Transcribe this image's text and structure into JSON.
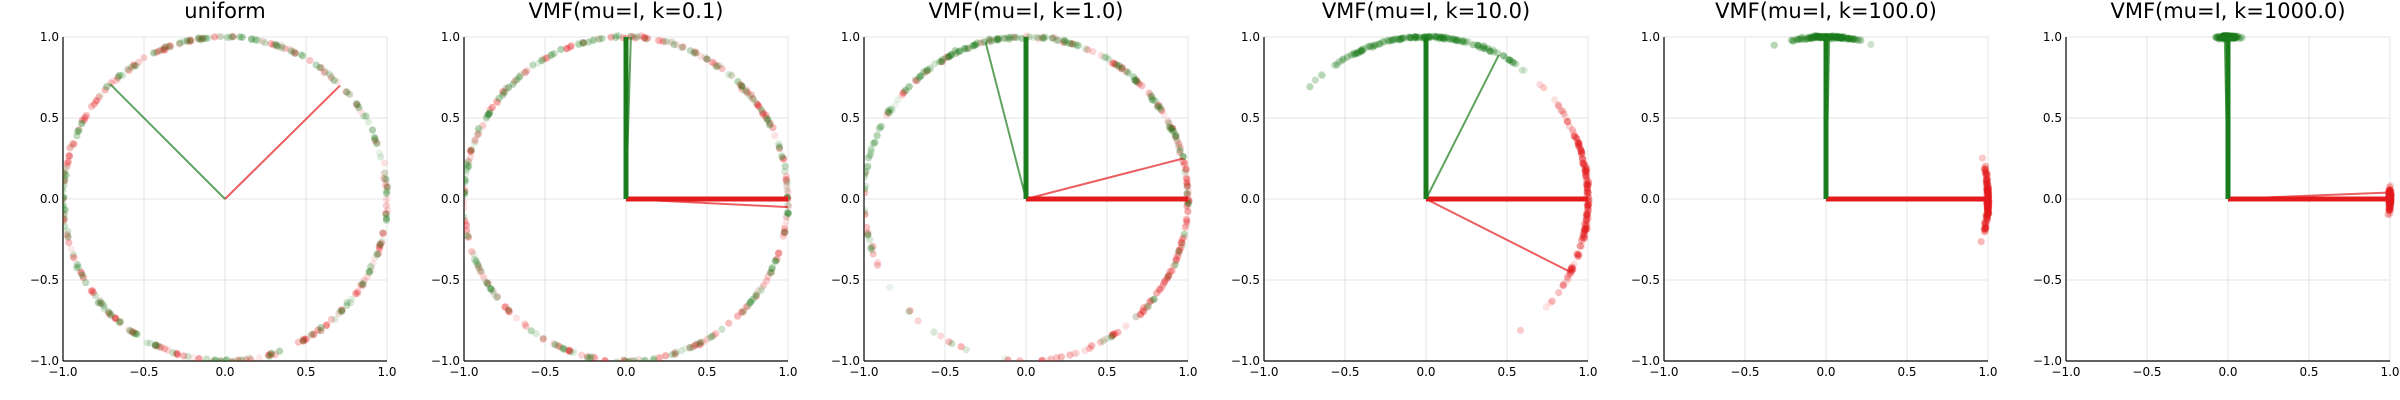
{
  "colors": {
    "red": "#e41a1c",
    "green": "#1b7c1b",
    "grid": "#e5e5e5",
    "axis": "#000000"
  },
  "chart_data": [
    {
      "type": "scatter",
      "title": "uniform",
      "xlim": [
        -1.0,
        1.0
      ],
      "ylim": [
        -1.0,
        1.0
      ],
      "xticks": [
        "−1.0",
        "−0.5",
        "0.0",
        "0.5",
        "1.0"
      ],
      "yticks": [
        "−1.0",
        "−0.5",
        "0.0",
        "0.5",
        "1.0"
      ],
      "grid": true,
      "kappa": 0,
      "mean_vectors": {
        "red": [
          0.71,
          0.7
        ],
        "green": [
          -0.71,
          0.71
        ]
      }
    },
    {
      "type": "scatter",
      "title": "VMF(mu=I, k=0.1)",
      "xlim": [
        -1.0,
        1.0
      ],
      "ylim": [
        -1.0,
        1.0
      ],
      "xticks": [
        "−1.0",
        "−0.5",
        "0.0",
        "0.5",
        "1.0"
      ],
      "yticks": [
        "−1.0",
        "−0.5",
        "0.0",
        "0.5",
        "1.0"
      ],
      "grid": true,
      "kappa": 0.1,
      "mean_vectors": {
        "red": [
          1.0,
          -0.05
        ],
        "green": [
          0.03,
          1.0
        ]
      }
    },
    {
      "type": "scatter",
      "title": "VMF(mu=I, k=1.0)",
      "xlim": [
        -1.0,
        1.0
      ],
      "ylim": [
        -1.0,
        1.0
      ],
      "xticks": [
        "−1.0",
        "−0.5",
        "0.0",
        "0.5",
        "1.0"
      ],
      "yticks": [
        "−1.0",
        "−0.5",
        "0.0",
        "0.5",
        "1.0"
      ],
      "grid": true,
      "kappa": 1.0,
      "mean_vectors": {
        "red": [
          0.97,
          0.25
        ],
        "green": [
          -0.25,
          0.97
        ]
      }
    },
    {
      "type": "scatter",
      "title": "VMF(mu=I, k=10.0)",
      "xlim": [
        -1.0,
        1.0
      ],
      "ylim": [
        -1.0,
        1.0
      ],
      "xticks": [
        "−1.0",
        "−0.5",
        "0.0",
        "0.5",
        "1.0"
      ],
      "yticks": [
        "−1.0",
        "−0.5",
        "0.0",
        "0.5",
        "1.0"
      ],
      "grid": true,
      "kappa": 10.0,
      "mean_vectors": {
        "red": [
          0.89,
          -0.45
        ],
        "green": [
          0.45,
          0.89
        ]
      }
    },
    {
      "type": "scatter",
      "title": "VMF(mu=I, k=100.0)",
      "xlim": [
        -1.0,
        1.0
      ],
      "ylim": [
        -1.0,
        1.0
      ],
      "xticks": [
        "−1.0",
        "−0.5",
        "0.0",
        "0.5",
        "1.0"
      ],
      "yticks": [
        "−1.0",
        "−0.5",
        "0.0",
        "0.5",
        "1.0"
      ],
      "grid": true,
      "kappa": 100.0,
      "mean_vectors": {
        "red": [
          1.0,
          -0.01
        ],
        "green": [
          0.02,
          1.0
        ]
      }
    },
    {
      "type": "scatter",
      "title": "VMF(mu=I, k=1000.0)",
      "xlim": [
        -1.0,
        1.0
      ],
      "ylim": [
        -1.0,
        1.0
      ],
      "xticks": [
        "−1.0",
        "−0.5",
        "0.0",
        "0.5",
        "1.0"
      ],
      "yticks": [
        "−1.0",
        "−0.5",
        "0.0",
        "0.5",
        "1.0"
      ],
      "grid": true,
      "kappa": 1000.0,
      "mean_vectors": {
        "red": [
          1.0,
          0.04
        ],
        "green": [
          -0.02,
          1.0
        ]
      }
    }
  ]
}
